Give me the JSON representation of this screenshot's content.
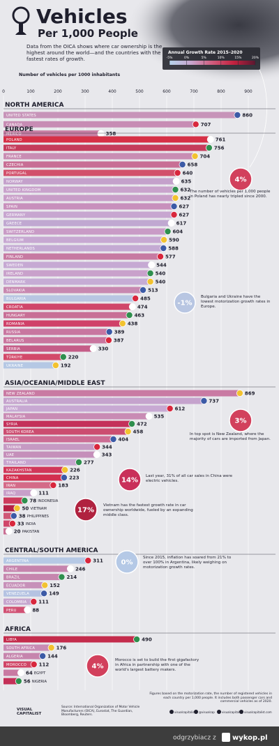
{
  "chart_data": {
    "type": "bar",
    "title": "Vehicles",
    "subtitle": "Per 1,000 People",
    "description": "Data from the OICA shows where car ownership is the highest around the world—and the countries with the fastest rates of growth.",
    "x_label": "Number of vehicles per 1000 inhabitants",
    "xlim": [
      0,
      1000
    ],
    "xticks": [
      0,
      100,
      200,
      300,
      400,
      500,
      600,
      700,
      800,
      900
    ],
    "grid": true,
    "legend": {
      "title": "Annual Growth Rate 2015–2020",
      "colors": [
        "#b5d3ea",
        "#c8a6cf",
        "#cf5b7c",
        "#c2213f",
        "#5a1830"
      ],
      "ticks": [
        {
          "value": -5,
          "label": "-5%"
        },
        {
          "value": 0,
          "label": "0%"
        },
        {
          "value": 5,
          "label": "5%"
        },
        {
          "value": 10,
          "label": "10%"
        },
        {
          "value": 15,
          "label": "15%"
        },
        {
          "value": 20,
          "label": "20%"
        }
      ]
    },
    "groups": [
      {
        "name": "NORTH AMERICA",
        "categories": [
          "UNITED STATES",
          "CANADA",
          "MEXICO"
        ],
        "values": [
          860,
          707,
          358
        ],
        "colors": [
          "#c794b9",
          "#c78cb4",
          "#c77fa4"
        ]
      },
      {
        "name": "EUROPE",
        "categories": [
          "POLAND",
          "ITALY",
          "FRANCE",
          "CZECHIA",
          "PORTUGAL",
          "NORWAY",
          "UNITED KINGDOM",
          "AUSTRIA",
          "SPAIN",
          "GERMANY",
          "GREECE",
          "SWITZERLAND",
          "BELGIUM",
          "NETHERLANDS",
          "FINLAND",
          "SWEDEN",
          "IRELAND",
          "DENMARK",
          "SLOVAKIA",
          "BULGARIA",
          "CROATIA",
          "HUNGARY",
          "ROMANIA",
          "RUSSIA",
          "BELARUS",
          "SERBIA",
          "TÜRKIYE",
          "UKRAINE"
        ],
        "values": [
          761,
          756,
          704,
          658,
          640,
          635,
          632,
          632,
          627,
          627,
          617,
          604,
          590,
          588,
          577,
          544,
          540,
          540,
          513,
          485,
          474,
          463,
          438,
          389,
          387,
          330,
          220,
          192
        ],
        "colors": [
          "#d63046",
          "#c53c5b",
          "#c98db3",
          "#c86e95",
          "#d2506b",
          "#c4a1cb",
          "#c9a3cc",
          "#c89ec8",
          "#c890bc",
          "#c7a6d0",
          "#c0a8d1",
          "#c99bc6",
          "#c7a8d2",
          "#c4aad3",
          "#c77aa2",
          "#c6a9d3",
          "#c9a1cb",
          "#c6acd5",
          "#c888b0",
          "#b8c6e2",
          "#d0466a",
          "#c86f96",
          "#d04169",
          "#c876a0",
          "#c9759e",
          "#c55d88",
          "#d34a6a",
          "#b5c8e4"
        ]
      },
      {
        "name": "ASIA/OCEANIA/MIDDLE EAST",
        "categories": [
          "NEW ZEALAND",
          "AUSTRALIA",
          "JAPAN",
          "MALAYSIA",
          "SYRIA",
          "SOUTH KOREA",
          "ISRAEL",
          "TAIWAN",
          "UAE",
          "THAILAND",
          "KAZAKHSTAN",
          "CHINA",
          "IRAN",
          "IRAQ",
          "INDONESIA",
          "VIETNAM",
          "PHILIPPINES",
          "INDIA",
          "PAKISTAN"
        ],
        "values": [
          869,
          737,
          612,
          535,
          472,
          458,
          404,
          344,
          343,
          277,
          226,
          223,
          183,
          111,
          78,
          50,
          38,
          33,
          20
        ],
        "colors": [
          "#c97aa3",
          "#c5a3cd",
          "#c8a9d3",
          "#c98bb4",
          "#c4315a",
          "#cc4d70",
          "#cc6d94",
          "#c69ac3",
          "#c58fba",
          "#c7a5cf",
          "#d1375a",
          "#d32f4f",
          "#d46b88",
          "#c8a0c9",
          "#cd3b5d",
          "#b52145",
          "#cf5877",
          "#d0466a",
          "#c96f94"
        ]
      },
      {
        "name": "CENTRAL/SOUTH AMERICA",
        "categories": [
          "ARGENTINA",
          "CHILE",
          "BRAZIL",
          "ECUADOR",
          "VENEZUELA",
          "COLOMBIA",
          "PERU"
        ],
        "values": [
          311,
          246,
          214,
          152,
          149,
          111,
          88
        ],
        "colors": [
          "#b6c9e5",
          "#c684ad",
          "#c686ae",
          "#c791b9",
          "#b5c3e2",
          "#c6a7cf",
          "#d15174"
        ]
      },
      {
        "name": "AFRICA",
        "categories": [
          "LIBYA",
          "SOUTH AFRICA",
          "ALGERIA",
          "MOROCCO",
          "EGYPT",
          "NIGERIA"
        ],
        "values": [
          490,
          176,
          144,
          112,
          64,
          56
        ],
        "colors": [
          "#c42c4c",
          "#c98bb4",
          "#c685ad",
          "#d04566",
          "#c97aa2",
          "#c43058"
        ]
      }
    ],
    "annotations": [
      {
        "badge": "4%",
        "color": "#d2405c",
        "text": "The number of vehicles per 1,000 people in Poland has nearly tripled since 2000."
      },
      {
        "badge": "-1%",
        "color": "#b8c6e2",
        "text": "Bulgaria and Ukraine have the lowest motorization growth rates in Europe."
      },
      {
        "badge": "3%",
        "color": "#d2405c",
        "text": "In top spot is New Zealand, where the majority of cars are imported from Japan."
      },
      {
        "badge": "14%",
        "color": "#c9305a",
        "text": "Last year, 31% of all car sales in China were electric vehicles."
      },
      {
        "badge": "17%",
        "color": "#b0223f",
        "text": "Vietnam has the fastest growth rate in car ownership worldwide, fueled by an expanding middle class."
      },
      {
        "badge": "0%",
        "color": "#b5c9e6",
        "text": "Since 2015, inflation has soared from 21% to over 100% in Argentina, likely weighing on motorization growth rates."
      },
      {
        "badge": "4%",
        "color": "#d2405c",
        "text": "Morocco is set to build the first gigafactory in Africa in partnership with one of the world's largest battery makers."
      }
    ],
    "note": "Figures based on the motorization rate, the number of registered vehicles in each country per 1,000 people. It includes both passenger cars and commercial vehicles as of 2020.",
    "source": "Source: International Organization of Motor Vehicle Manufacturers (OICA), Eurostat, The Guardian, Bloomberg, Reuters.",
    "brand": [
      "VISUAL",
      "CAPITALIST"
    ],
    "social": [
      "visualcapitalist",
      "@visualcap",
      "visualcapitalist",
      "visualcapitalist.com"
    ]
  },
  "footer_bar": {
    "user": "odgrzybiacz z",
    "site": "wykop.pl"
  }
}
